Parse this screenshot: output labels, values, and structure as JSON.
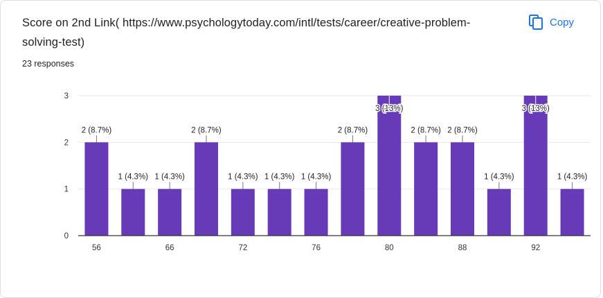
{
  "question": {
    "title": "Score on 2nd Link( https://www.psychologytoday.com/intl/tests/career/creative-problem-solving-test)",
    "responses": "23 responses",
    "copy_label": "Copy",
    "copy_icon": "copy-icon"
  },
  "colors": {
    "bar": "#673ab7",
    "accent": "#1a73e8",
    "grid": "#e8e8e8",
    "axis": "#333333",
    "text": "#202124"
  },
  "chart_data": {
    "type": "bar",
    "ylim": [
      0,
      3
    ],
    "yticks": [
      0,
      1,
      2,
      3
    ],
    "grid": true,
    "xticks": [
      "56",
      "",
      "66",
      "",
      "72",
      "",
      "76",
      "",
      "80",
      "",
      "88",
      "",
      "92",
      ""
    ],
    "values": [
      2,
      1,
      1,
      2,
      1,
      1,
      1,
      2,
      3,
      2,
      2,
      1,
      3,
      1
    ],
    "labels": [
      "2 (8.7%)",
      "1 (4.3%)",
      "1 (4.3%)",
      "2 (8.7%)",
      "1 (4.3%)",
      "1 (4.3%)",
      "1 (4.3%)",
      "2 (8.7%)",
      "3 (13%)",
      "2 (8.7%)",
      "2 (8.7%)",
      "1 (4.3%)",
      "3 (13%)",
      "1 (4.3%)"
    ]
  }
}
